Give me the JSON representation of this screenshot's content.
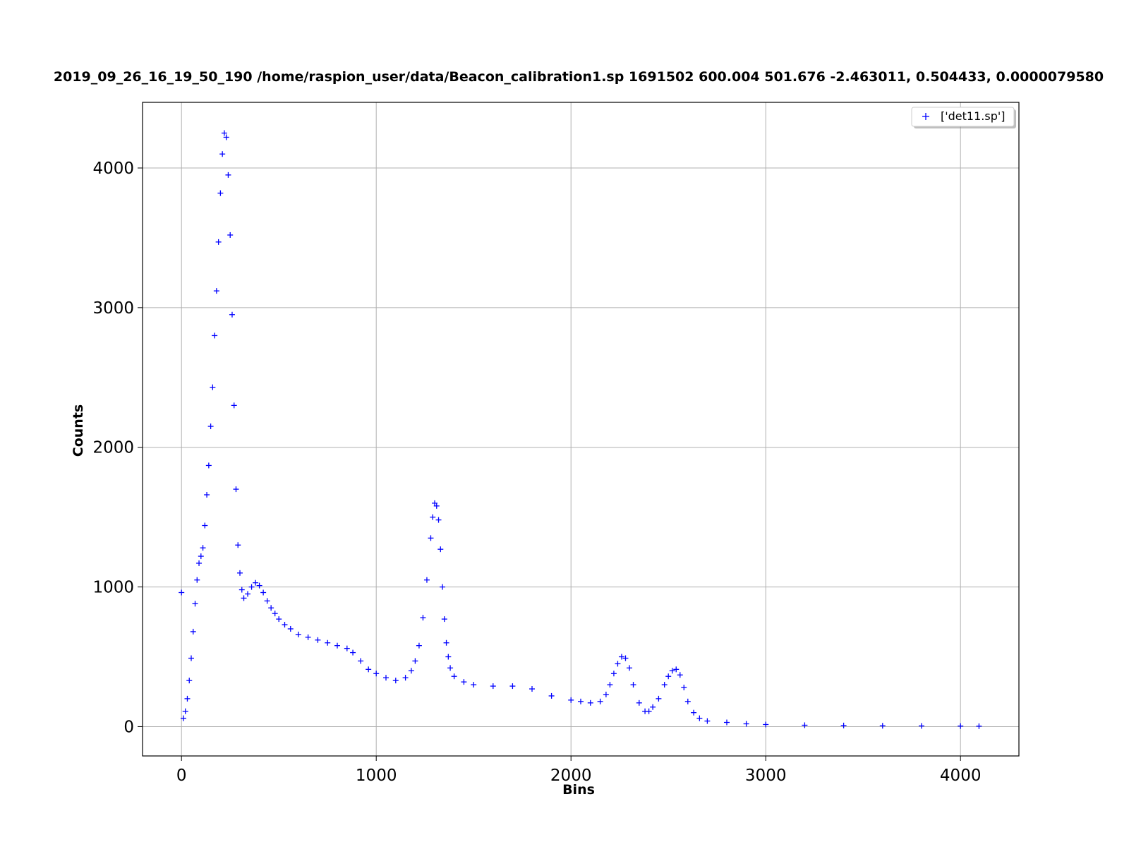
{
  "chart_data": {
    "type": "scatter",
    "title": "2019_09_26_16_19_50_190 /home/raspion_user/data/Beacon_calibration1.sp 1691502  600.004  501.676 -2.463011, 0.504433, 0.0000079580",
    "xlabel": "Bins",
    "ylabel": "Counts",
    "xlim": [
      -200,
      4300
    ],
    "ylim": [
      -210,
      4470
    ],
    "xticks": [
      0,
      1000,
      2000,
      3000,
      4000
    ],
    "yticks": [
      0,
      1000,
      2000,
      3000,
      4000
    ],
    "xtick_labels": [
      "0",
      "1000",
      "2000",
      "3000",
      "4000"
    ],
    "ytick_labels": [
      "0",
      "1000",
      "2000",
      "3000",
      "4000"
    ],
    "grid": true,
    "legend_position": "top-right",
    "marker": "+",
    "color": "#0000ff",
    "series": [
      {
        "name": "['det11.sp']",
        "x": [
          0,
          10,
          20,
          30,
          40,
          50,
          60,
          70,
          80,
          90,
          100,
          110,
          120,
          130,
          140,
          150,
          160,
          170,
          180,
          190,
          200,
          210,
          220,
          230,
          240,
          250,
          260,
          270,
          280,
          290,
          300,
          310,
          320,
          340,
          360,
          380,
          400,
          420,
          440,
          460,
          480,
          500,
          530,
          560,
          600,
          650,
          700,
          750,
          800,
          850,
          880,
          920,
          960,
          1000,
          1050,
          1100,
          1150,
          1180,
          1200,
          1220,
          1240,
          1260,
          1280,
          1290,
          1300,
          1310,
          1320,
          1330,
          1340,
          1350,
          1360,
          1370,
          1380,
          1400,
          1450,
          1500,
          1600,
          1700,
          1800,
          1900,
          2000,
          2050,
          2100,
          2150,
          2180,
          2200,
          2220,
          2240,
          2260,
          2280,
          2300,
          2320,
          2350,
          2380,
          2400,
          2420,
          2450,
          2480,
          2500,
          2520,
          2540,
          2560,
          2580,
          2600,
          2630,
          2660,
          2700,
          2800,
          2900,
          3000,
          3200,
          3400,
          3600,
          3800,
          4000,
          4095
        ],
        "y": [
          960,
          60,
          110,
          200,
          330,
          490,
          680,
          880,
          1050,
          1170,
          1220,
          1280,
          1440,
          1660,
          1870,
          2150,
          2430,
          2800,
          3120,
          3470,
          3820,
          4100,
          4250,
          4220,
          3950,
          3520,
          2950,
          2300,
          1700,
          1300,
          1100,
          980,
          920,
          950,
          1000,
          1030,
          1010,
          960,
          900,
          850,
          810,
          770,
          730,
          700,
          660,
          640,
          620,
          600,
          580,
          560,
          530,
          470,
          410,
          380,
          350,
          330,
          350,
          400,
          470,
          580,
          780,
          1050,
          1350,
          1500,
          1600,
          1580,
          1480,
          1270,
          1000,
          770,
          600,
          500,
          420,
          360,
          320,
          300,
          290,
          290,
          270,
          220,
          190,
          180,
          170,
          180,
          230,
          300,
          380,
          450,
          500,
          490,
          420,
          300,
          170,
          110,
          110,
          140,
          200,
          300,
          360,
          400,
          410,
          370,
          280,
          180,
          100,
          60,
          40,
          30,
          20,
          15,
          10,
          8,
          6,
          5,
          4,
          3
        ]
      }
    ]
  }
}
